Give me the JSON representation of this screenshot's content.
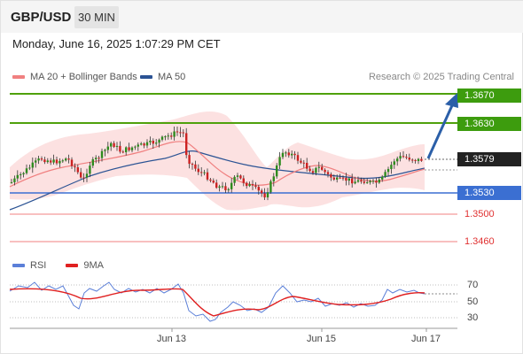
{
  "header": {
    "symbol": "GBP/USD",
    "timeframe": "30 MIN"
  },
  "datetime": "Monday, June 16, 2025 1:07:29 PM CET",
  "legend": {
    "ma20_label": "MA 20 + Bollinger Bands",
    "ma50_label": "MA 50",
    "credit": "Research © 2025 Trading Central"
  },
  "colors": {
    "ma20": "#f08080",
    "ma50": "#2b5394",
    "band": "#fbd9d9",
    "candle_up": "#2e8b1e",
    "candle_down": "#cc2222",
    "resistance": "#4fa10c",
    "support": "#3b6fd2",
    "target_red": "#f08080",
    "arrow": "#2b5fa8",
    "rsi": "#5b7fd8",
    "rsi_ma": "#e02020"
  },
  "price_levels": [
    {
      "label": "1.3670",
      "style": "green"
    },
    {
      "label": "1.3630",
      "style": "green"
    },
    {
      "label": "1.3579",
      "style": "dark"
    },
    {
      "label": "1.3530",
      "style": "blue"
    },
    {
      "label": "1.3500",
      "style": "red"
    },
    {
      "label": "1.3460",
      "style": "red"
    }
  ],
  "rsi_panel": {
    "rsi_label": "RSI",
    "ma_label": "9MA",
    "ticks": [
      "70",
      "50",
      "30"
    ]
  },
  "x_axis": [
    "Jun 13",
    "Jun 15",
    "Jun 17"
  ]
}
